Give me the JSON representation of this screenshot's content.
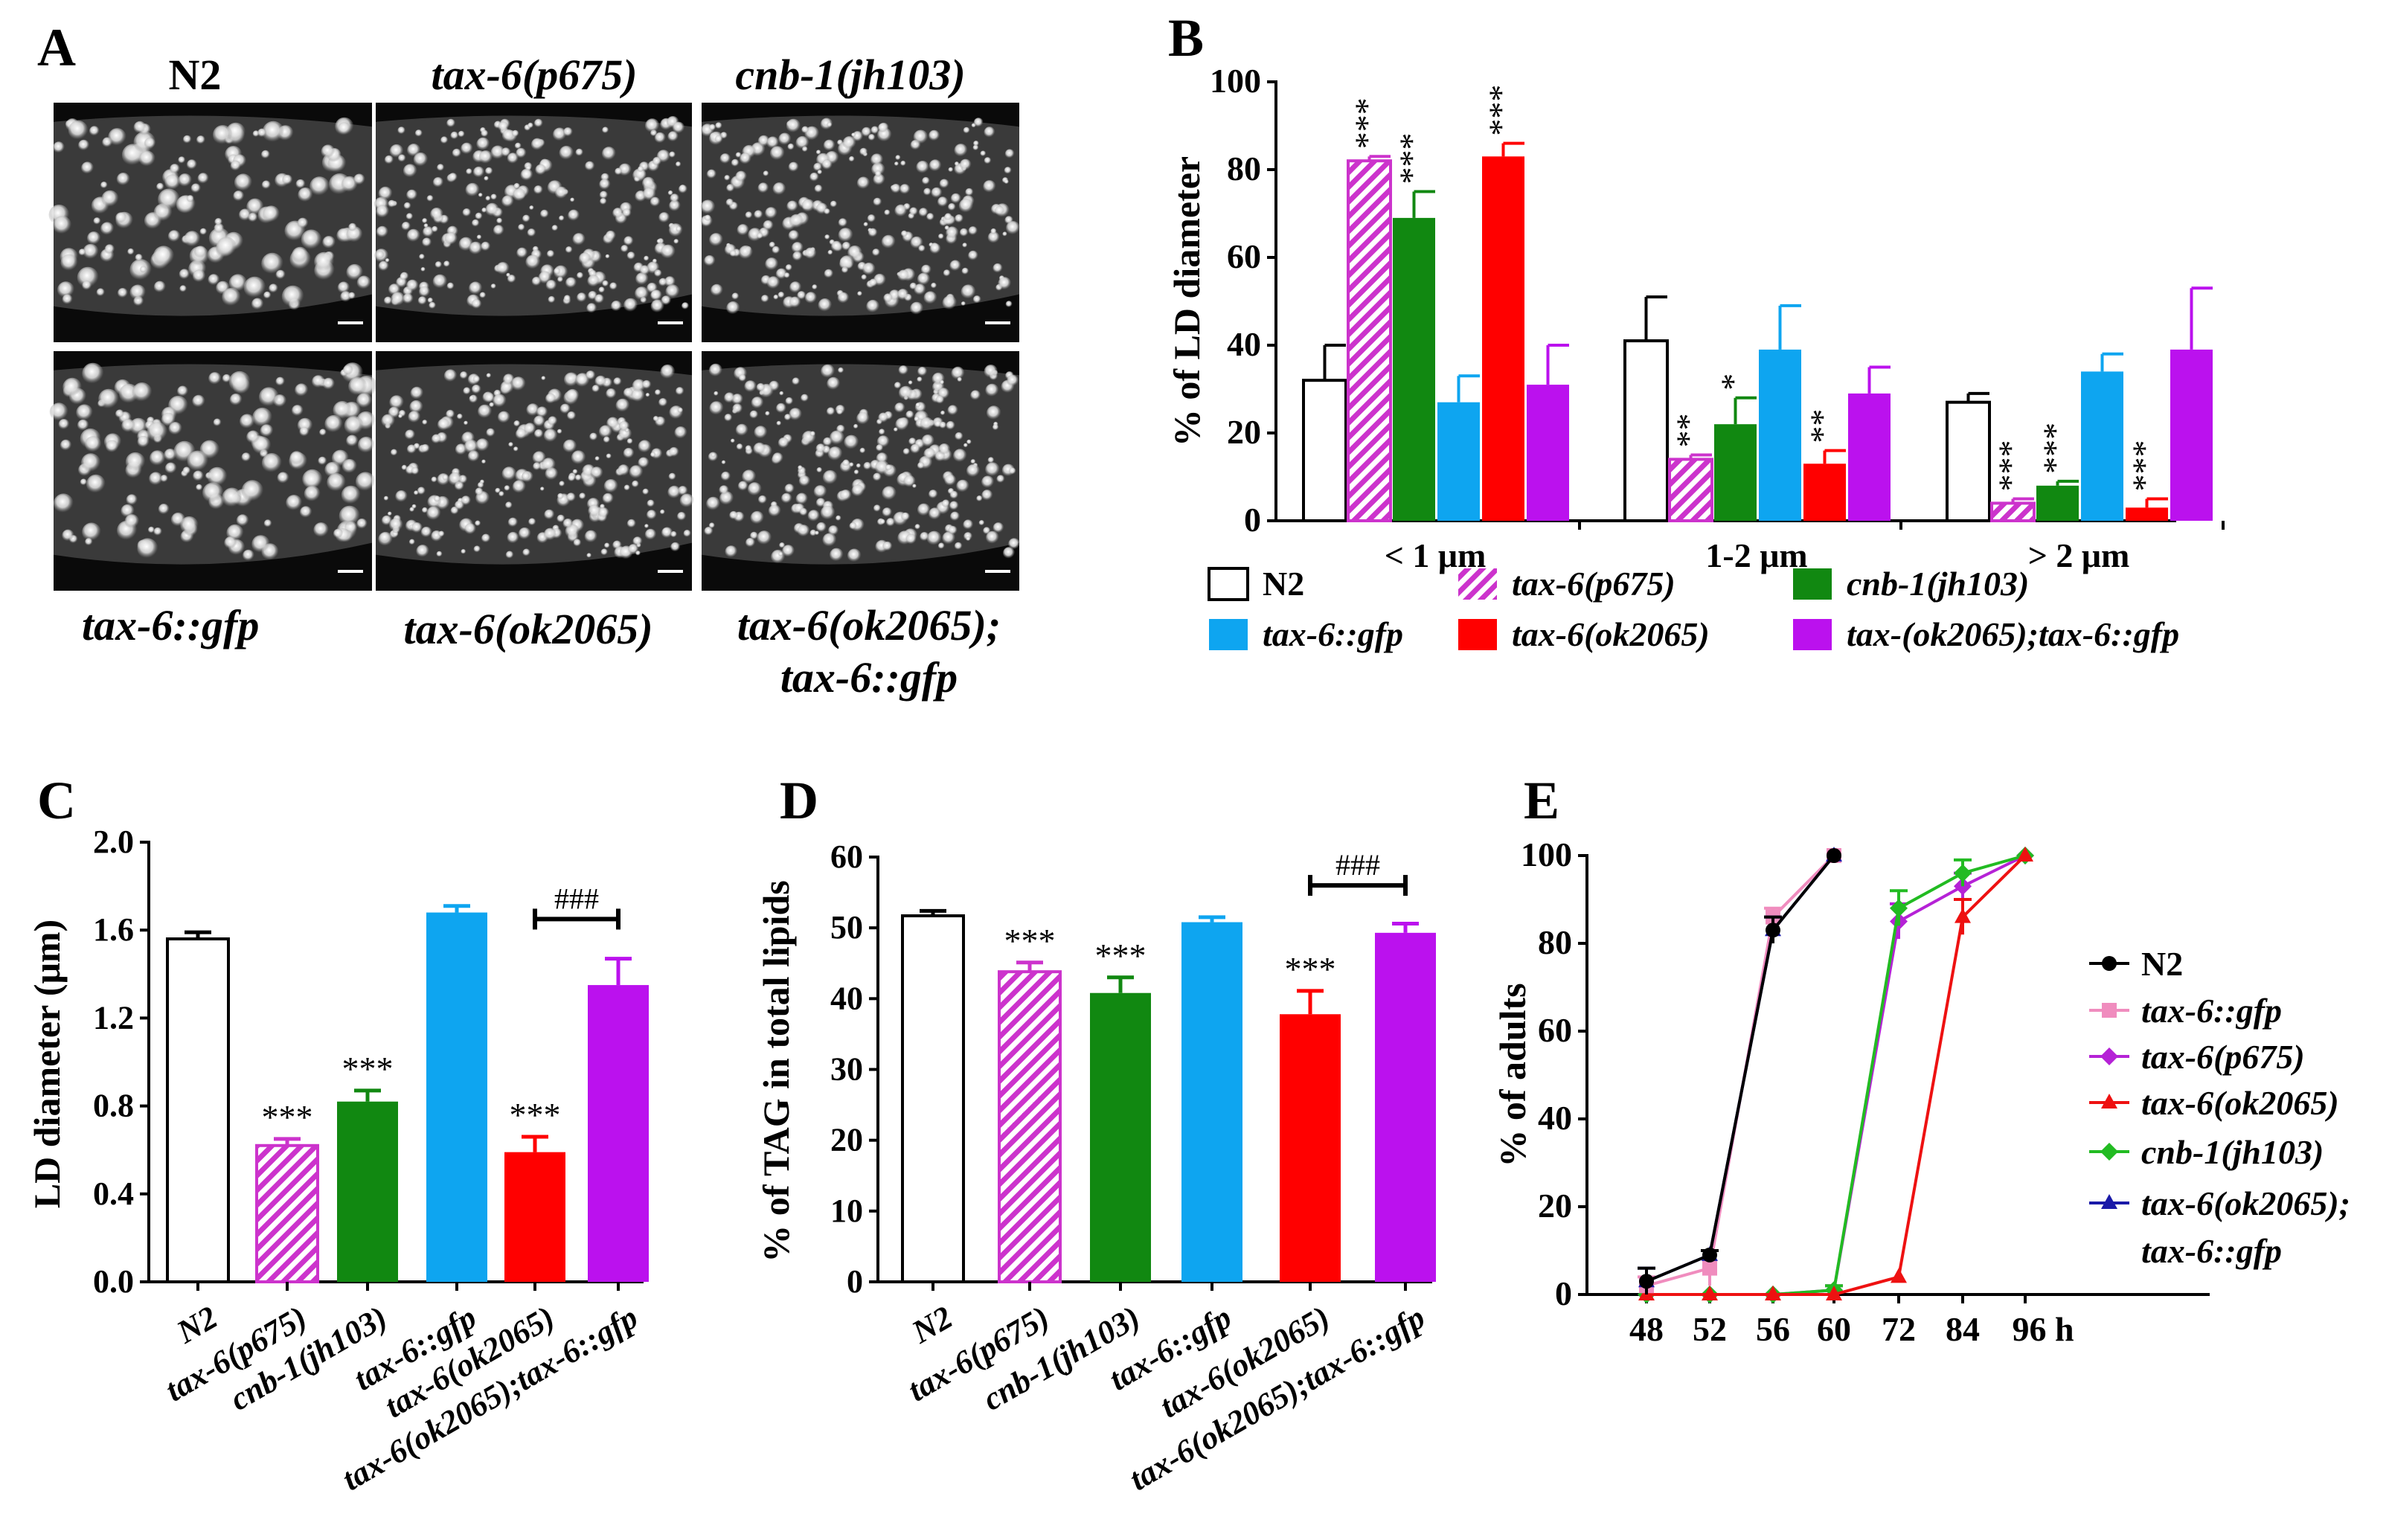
{
  "panel_labels": {
    "a": "A",
    "b": "B",
    "c": "C",
    "d": "D",
    "e": "E"
  },
  "micrographs": {
    "top": [
      "N2",
      "tax-6(p675)",
      "cnb-1(jh103)"
    ],
    "bottom": [
      "tax-6::gfp",
      "tax-6(ok2065)"
    ],
    "bottom_last_line1": "tax-6(ok2065);",
    "bottom_last_line2": "tax-6::gfp"
  },
  "chart_data": [
    {
      "panel": "B",
      "type": "bar",
      "ylabel": "% of LD diameter",
      "ylim": [
        0,
        100
      ],
      "yticks": [
        "0",
        "20",
        "40",
        "60",
        "80",
        "100"
      ],
      "groups": [
        "< 1 μm",
        "1-2 μm",
        "> 2 μm"
      ],
      "series": [
        {
          "name": "N2",
          "color": "#ffffff",
          "values": [
            32,
            41,
            27
          ],
          "errors": [
            8,
            10,
            2
          ],
          "sig": [
            "",
            "",
            ""
          ]
        },
        {
          "name": "tax-6(p675)",
          "color": "#cc33cc",
          "hatched": true,
          "values": [
            82,
            14,
            4
          ],
          "errors": [
            1,
            1,
            1
          ],
          "sig": [
            "***",
            "**",
            "***"
          ]
        },
        {
          "name": "cnb-1(jh103)",
          "color": "#118811",
          "values": [
            69,
            22,
            8
          ],
          "errors": [
            6,
            6,
            1
          ],
          "sig": [
            "***",
            "*",
            "***"
          ]
        },
        {
          "name": "tax-6::gfp",
          "color": "#0ea5f0",
          "values": [
            27,
            39,
            34
          ],
          "errors": [
            6,
            10,
            4
          ],
          "sig": [
            "",
            "",
            ""
          ]
        },
        {
          "name": "tax-6(ok2065)",
          "color": "#ff0000",
          "values": [
            83,
            13,
            3
          ],
          "errors": [
            3,
            3,
            2
          ],
          "sig": [
            "***",
            "**",
            "***"
          ]
        },
        {
          "name": "tax-(ok2065);tax-6::gfp",
          "color": "#bb11ee",
          "values": [
            31,
            29,
            39
          ],
          "errors": [
            9,
            6,
            14
          ],
          "sig": [
            "",
            "",
            ""
          ]
        }
      ]
    },
    {
      "panel": "C",
      "type": "bar",
      "ylabel": "LD diameter (μm)",
      "ylim": [
        0,
        2.0
      ],
      "yticks": [
        "0.0",
        "0.4",
        "0.8",
        "1.2",
        "1.6",
        "2.0"
      ],
      "categories": [
        "N2",
        "tax-6(p675)",
        "cnb-1(jh103)",
        "tax-6::gfp",
        "tax-6(ok2065)",
        "tax-6(ok2065);tax-6::gfp"
      ],
      "values": [
        1.56,
        0.62,
        0.82,
        1.68,
        0.59,
        1.35
      ],
      "errors": [
        0.03,
        0.03,
        0.05,
        0.03,
        0.07,
        0.12
      ],
      "colors": [
        "#ffffff",
        "#cc33cc",
        "#118811",
        "#0ea5f0",
        "#ff0000",
        "#bb11ee"
      ],
      "hatched": [
        false,
        true,
        false,
        false,
        false,
        false
      ],
      "sig": [
        "",
        "***",
        "***",
        "",
        "***",
        ""
      ],
      "bracket": {
        "from": 4,
        "to": 5,
        "label": "###",
        "level": 1.65
      }
    },
    {
      "panel": "D",
      "type": "bar",
      "ylabel": "% of TAG in total lipids",
      "ylim": [
        0,
        60
      ],
      "yticks": [
        "0",
        "10",
        "20",
        "30",
        "40",
        "50",
        "60"
      ],
      "categories": [
        "N2",
        "tax-6(p675)",
        "cnb-1(jh103)",
        "tax-6::gfp",
        "tax-6(ok2065)",
        "tax-6(ok2065);tax-6::gfp"
      ],
      "values": [
        51.7,
        43.8,
        40.8,
        50.8,
        37.8,
        49.3
      ],
      "errors": [
        0.7,
        1.3,
        2.2,
        0.7,
        3.3,
        1.3
      ],
      "colors": [
        "#ffffff",
        "#cc33cc",
        "#118811",
        "#0ea5f0",
        "#ff0000",
        "#bb11ee"
      ],
      "hatched": [
        false,
        true,
        false,
        false,
        false,
        false
      ],
      "sig": [
        "",
        "***",
        "***",
        "",
        "***",
        ""
      ],
      "bracket": {
        "from": 4,
        "to": 5,
        "label": "###",
        "level": 56
      }
    },
    {
      "panel": "E",
      "type": "line",
      "ylabel": "% of adults",
      "ylim": [
        0,
        100
      ],
      "yticks": [
        "0",
        "20",
        "40",
        "60",
        "80",
        "100"
      ],
      "x": [
        "48",
        "52",
        "56",
        "60",
        "72",
        "84",
        "96 h"
      ],
      "series": [
        {
          "name": "N2",
          "color": "#000000",
          "marker": "circle",
          "values": [
            3,
            9,
            83,
            100,
            null,
            null,
            null
          ],
          "errors": [
            3,
            1,
            3,
            0,
            null,
            null,
            null
          ]
        },
        {
          "name": "tax-6::gfp",
          "color": "#f08cbe",
          "marker": "square",
          "values": [
            2,
            6,
            86,
            100,
            null,
            null,
            null
          ],
          "errors": [
            2,
            4,
            2,
            0,
            null,
            null,
            null
          ]
        },
        {
          "name": "tax-6(p675)",
          "color": "#b522d6",
          "marker": "diamond",
          "values": [
            0,
            0,
            0,
            1,
            85,
            93,
            100
          ],
          "errors": [
            0,
            0,
            0,
            1,
            4,
            3,
            0
          ]
        },
        {
          "name": "tax-6(ok2065)",
          "color": "#ee1111",
          "marker": "triangle",
          "values": [
            0,
            0,
            0,
            0,
            4,
            86,
            100
          ],
          "errors": [
            0,
            0,
            0,
            0,
            0,
            4,
            0
          ]
        },
        {
          "name": "cnb-1(jh103)",
          "color": "#22bb22",
          "marker": "diamond",
          "values": [
            0,
            0,
            0,
            1,
            88,
            96,
            100
          ],
          "errors": [
            0,
            0,
            0,
            1,
            4,
            3,
            0
          ]
        },
        {
          "name": "tax-6(ok2065);\ntax-6::gfp",
          "color": "#1a1aa8",
          "marker": "triangle",
          "values": [
            3,
            9,
            83,
            100,
            null,
            null,
            null
          ],
          "errors": [
            3,
            1,
            3,
            0,
            null,
            null,
            null
          ]
        }
      ]
    }
  ]
}
